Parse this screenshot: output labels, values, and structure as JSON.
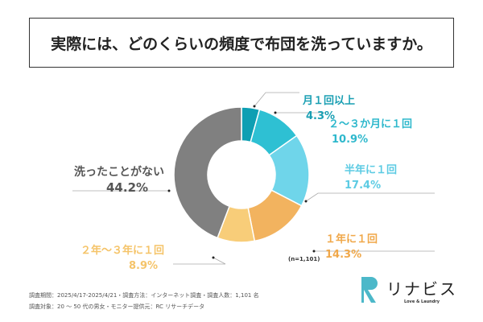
{
  "title": "実際には、どのくらいの頻度で布団を洗っていますか。",
  "chart_data": {
    "type": "pie",
    "donut": true,
    "title": "実際には、どのくらいの頻度で布団を洗っていますか。",
    "categories": [
      "月１回以上",
      "２～３か月に１回",
      "半年に１回",
      "１年に１回",
      "２年～３年に１回",
      "洗ったことがない"
    ],
    "values": [
      4.3,
      10.9,
      17.4,
      14.3,
      8.9,
      44.2
    ],
    "value_labels": [
      "4.3%",
      "10.9%",
      "17.4%",
      "14.3%",
      "8.9%",
      "44.2%"
    ],
    "colors": [
      "#0e9fb3",
      "#2ec0d3",
      "#6fd5ea",
      "#f2b35f",
      "#f8cd79",
      "#808080"
    ],
    "annotation": "(n=1,101)"
  },
  "footer": {
    "line1": "調査期間：2025/4/17-2025/4/21・調査方法：インターネット調査・調査人数：1,101 名",
    "line2": "調査対象：20 ～ 50 代の男女・モニター提供元：RC リサーチデータ"
  },
  "logo": {
    "name": "リナビス",
    "tagline": "Love & Laundry"
  }
}
